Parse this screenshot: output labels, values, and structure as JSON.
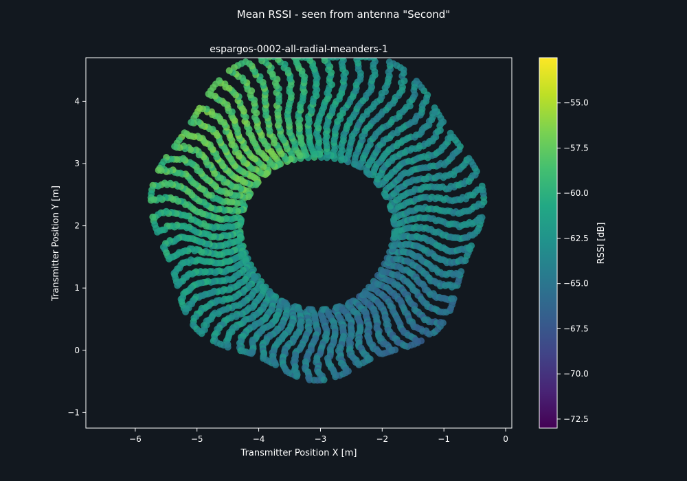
{
  "figure": {
    "suptitle": "Mean RSSI - seen from antenna \"Second\"",
    "background": "#12181f",
    "foreground": "#ffffff"
  },
  "chart_data": {
    "type": "scatter",
    "title": "espargos-0002-all-radial-meanders-1",
    "xlabel": "Transmitter Position X [m]",
    "ylabel": "Transmitter Position Y [m]",
    "xlim": [
      -6.8,
      0.1
    ],
    "ylim": [
      -1.25,
      4.7
    ],
    "xticks": [
      -6,
      -5,
      -4,
      -3,
      -2,
      -1,
      0
    ],
    "yticks": [
      -1,
      0,
      1,
      2,
      3,
      4
    ],
    "grid": false,
    "colormap": "viridis",
    "marker_color_source": "RSSI [dB]",
    "colorbar": {
      "label": "RSSI [dB]",
      "range": [
        -73.0,
        -52.5
      ],
      "ticks": [
        -55.0,
        -57.5,
        -60.0,
        -62.5,
        -65.0,
        -67.5,
        -70.0,
        -72.5
      ],
      "tick_labels": [
        "−55.0",
        "−57.5",
        "−60.0",
        "−62.5",
        "−65.0",
        "−67.5",
        "−70.0",
        "−72.5"
      ]
    },
    "trajectory": {
      "shape": "ring of radial meanders",
      "center": [
        -3.05,
        1.9
      ],
      "inner_radius": 1.25,
      "outer_radius_min": 1.95,
      "outer_radius_max": 2.9,
      "meander_count": 70
    },
    "rssi_profile": {
      "upper_left_arc": -57.0,
      "left_side": -60.5,
      "right_side": -63.0,
      "lower_right": -68.5,
      "bottom": -66.0
    }
  }
}
